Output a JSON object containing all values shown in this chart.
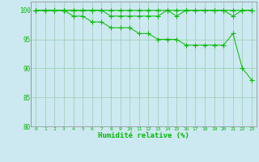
{
  "xlabel": "Humidité relative (%)",
  "background_color": "#cce8f0",
  "line_color": "#00bb00",
  "grid_color": "#99ccaa",
  "ylim": [
    80,
    101.5
  ],
  "xlim": [
    -0.5,
    23.5
  ],
  "yticks": [
    80,
    85,
    90,
    95,
    100
  ],
  "xtick_labels": [
    "0",
    "1",
    "2",
    "3",
    "4",
    "5",
    "6",
    "7",
    "8",
    "9",
    "10",
    "11",
    "12",
    "13",
    "14",
    "15",
    "16",
    "17",
    "18",
    "19",
    "20",
    "21",
    "22",
    "23"
  ],
  "series1_y": [
    100,
    100,
    100,
    100,
    100,
    100,
    100,
    100,
    100,
    100,
    100,
    100,
    100,
    100,
    100,
    99,
    100,
    100,
    100,
    100,
    100,
    99,
    100,
    100
  ],
  "series2_y": [
    100,
    100,
    100,
    100,
    100,
    100,
    100,
    100,
    99,
    99,
    99,
    99,
    99,
    99,
    100,
    100,
    100,
    100,
    100,
    100,
    100,
    100,
    100,
    100
  ],
  "series3_y": [
    100,
    100,
    100,
    100,
    99,
    99,
    98,
    98,
    97,
    97,
    97,
    96,
    96,
    95,
    95,
    95,
    94,
    94,
    94,
    94,
    94,
    96,
    90,
    88
  ]
}
